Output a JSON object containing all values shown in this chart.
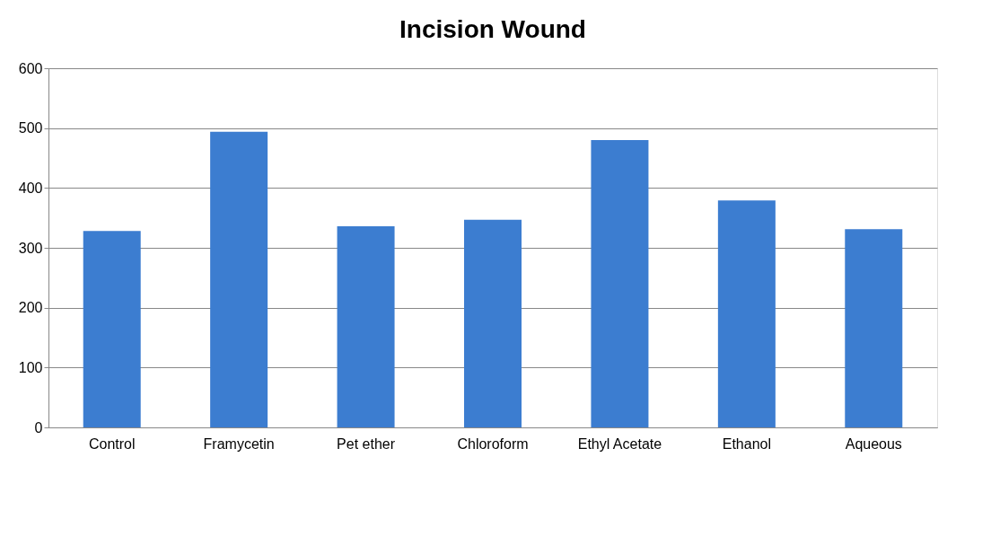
{
  "chart_data": {
    "type": "bar",
    "title": "Incision Wound",
    "categories": [
      "Control",
      "Framycetin",
      "Pet ether",
      "Chloroform",
      "Ethyl Acetate",
      "Ethanol",
      "Aqueous"
    ],
    "values": [
      328,
      494,
      336,
      347,
      480,
      379,
      331
    ],
    "color": "#3c7dd0",
    "ylim": [
      0,
      600
    ],
    "yticks": [
      0,
      100,
      200,
      300,
      400,
      500,
      600
    ],
    "grid": "y"
  }
}
